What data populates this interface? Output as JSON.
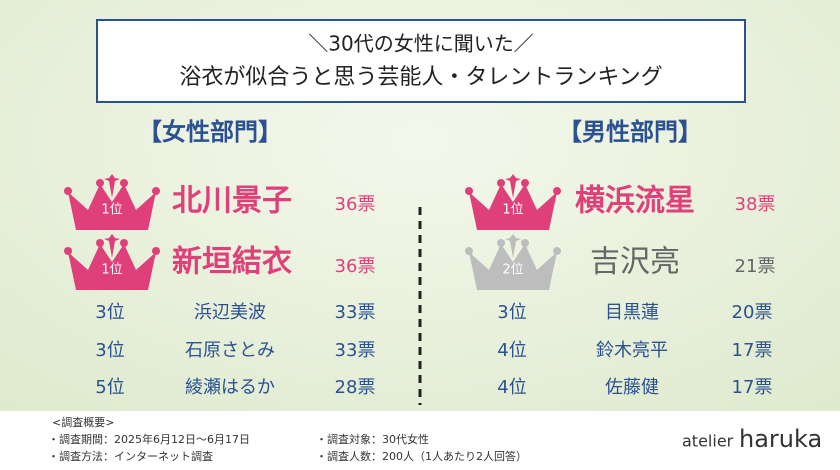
{
  "header": {
    "line1": "＼30代の女性に聞いた／",
    "line2": "浴衣が似合うと思う芸能人・タレントランキング"
  },
  "female": {
    "title": "【女性部門】",
    "rows": [
      {
        "rank": "1位",
        "name": "北川景子",
        "votes": "36票"
      },
      {
        "rank": "1位",
        "name": "新垣結衣",
        "votes": "36票"
      },
      {
        "rank": "3位",
        "name": "浜辺美波",
        "votes": "33票"
      },
      {
        "rank": "3位",
        "name": "石原さとみ",
        "votes": "33票"
      },
      {
        "rank": "5位",
        "name": "綾瀬はるか",
        "votes": "28票"
      }
    ]
  },
  "male": {
    "title": "【男性部門】",
    "rows": [
      {
        "rank": "1位",
        "name": "横浜流星",
        "votes": "38票"
      },
      {
        "rank": "2位",
        "name": "吉沢亮",
        "votes": "21票"
      },
      {
        "rank": "3位",
        "name": "目黒蓮",
        "votes": "20票"
      },
      {
        "rank": "4位",
        "name": "鈴木亮平",
        "votes": "17票"
      },
      {
        "rank": "4位",
        "name": "佐藤健",
        "votes": "17票"
      }
    ]
  },
  "footer": {
    "heading": "<調査概要>",
    "period": "・調査期間：2025年6月12日～6月17日",
    "method": "・調査方法：インターネット調査",
    "target": "・調査対象：30代女性",
    "count": "・調査人数：200人（1人あたり2人回答）",
    "logo_a": "atelier",
    "logo_b": "haruka"
  }
}
